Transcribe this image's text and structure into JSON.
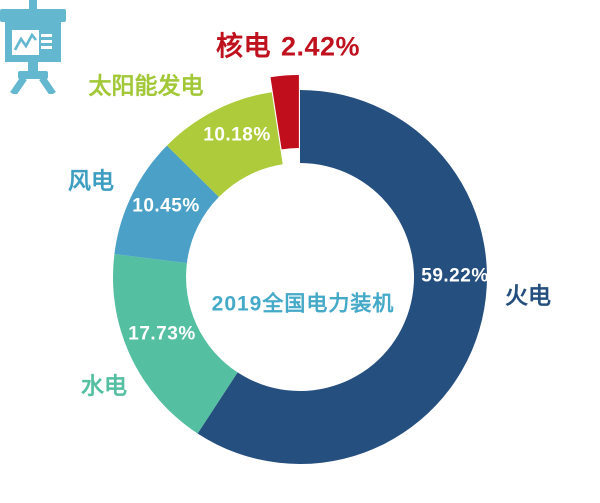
{
  "background_color": "#FFFFFF",
  "chart_data": {
    "type": "pie",
    "subtype": "donut",
    "direction": "clockwise",
    "start_angle_deg": 0,
    "legend": "none",
    "center_label": "2019全国电力装机",
    "center_icon": "presentation-chart-icon",
    "center_text_color": "#45A9C8",
    "icon_color": "#63B7CF",
    "value_label_color": "#FFFFFF",
    "callout": {
      "label": "核电",
      "pct": "2.42%",
      "color": "#C0111E"
    },
    "slices": [
      {
        "label": "火电",
        "value": 59.22,
        "pct": "59.22%",
        "color": "#254F7E",
        "label_color": "#254F7E",
        "exploded": false
      },
      {
        "label": "水电",
        "value": 17.73,
        "pct": "17.73%",
        "color": "#54BFA1",
        "label_color": "#54BFA1",
        "exploded": false
      },
      {
        "label": "风电",
        "value": 10.45,
        "pct": "10.45%",
        "color": "#4AA0C6",
        "label_color": "#3E9EC2",
        "exploded": false
      },
      {
        "label": "太阳能发电",
        "value": 10.18,
        "pct": "10.18%",
        "color": "#ADCB3A",
        "label_color": "#A2C838",
        "exploded": false
      },
      {
        "label": "核电",
        "value": 2.42,
        "pct": "2.42%",
        "color": "#C10E1C",
        "label_color": "#C0111E",
        "exploded": true
      }
    ]
  }
}
